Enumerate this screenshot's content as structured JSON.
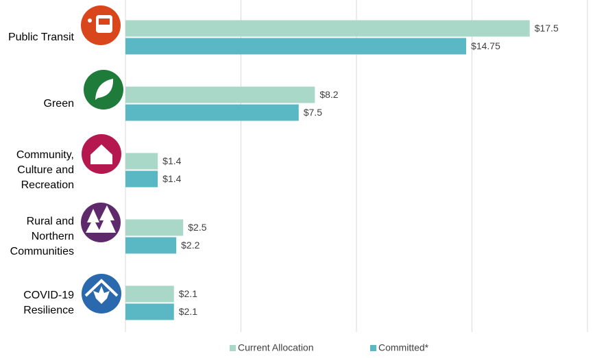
{
  "chart_data": {
    "type": "bar",
    "orientation": "horizontal",
    "categories": [
      "Public Transit",
      "Green",
      "Community, Culture and Recreation",
      "Rural and Northern Communities",
      "COVID-19 Resilience"
    ],
    "series": [
      {
        "name": "Current Allocation",
        "color": "#a9d8c8",
        "values": [
          17.5,
          8.2,
          1.4,
          2.5,
          2.1
        ],
        "value_labels": [
          "$17.5",
          "$8.2",
          "$1.4",
          "$2.5",
          "$2.1"
        ]
      },
      {
        "name": "Committed*",
        "color": "#5ab8c4",
        "values": [
          14.75,
          7.5,
          1.4,
          2.2,
          2.1
        ],
        "value_labels": [
          "$14.75",
          "$7.5",
          "$1.4",
          "$2.2",
          "$2.1"
        ]
      }
    ],
    "xlim": [
      0,
      20
    ],
    "xticks": [
      0,
      5,
      10,
      15,
      20
    ],
    "grid": true,
    "legend": "bottom"
  }
}
